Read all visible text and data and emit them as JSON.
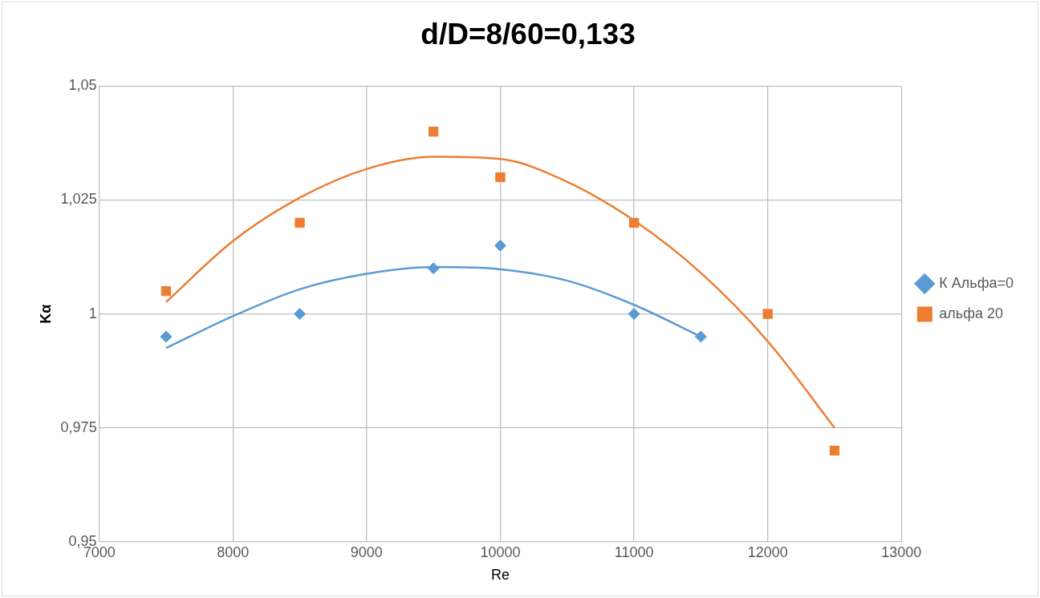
{
  "chart_data": {
    "type": "scatter",
    "title": "d/D=8/60=0,133",
    "xlabel": "Re",
    "ylabel": "Kα",
    "xlim": [
      7000,
      13000
    ],
    "xticks": [
      7000,
      8000,
      9000,
      10000,
      11000,
      12000,
      13000
    ],
    "ylim": [
      0.95,
      1.05
    ],
    "yticks": [
      {
        "value": 0.95,
        "label": "0,95"
      },
      {
        "value": 0.975,
        "label": "0,975"
      },
      {
        "value": 1,
        "label": "1"
      },
      {
        "value": 1.025,
        "label": "1,025"
      },
      {
        "value": 1.05,
        "label": "1,05"
      }
    ],
    "grid": true,
    "legend": "right",
    "series": [
      {
        "name": "К Альфа=0",
        "color": "#5b9bd5",
        "marker": "diamond",
        "x": [
          7500,
          8500,
          9500,
          10000,
          11000,
          11500
        ],
        "values": [
          0.995,
          1.0,
          1.01,
          1.015,
          1.0,
          0.995
        ]
      },
      {
        "name": "альфа 20",
        "color": "#ed7d31",
        "marker": "square",
        "x": [
          7500,
          8500,
          9500,
          10000,
          11000,
          12000,
          12500
        ],
        "values": [
          1.005,
          1.02,
          1.04,
          1.03,
          1.02,
          1.0,
          0.97
        ]
      },
      {
        "type": "line",
        "color": "#5b9bd5",
        "marker": "none",
        "x": [
          7500,
          8000,
          8500,
          9000,
          9500,
          10000,
          10500,
          11000,
          11500
        ],
        "values": [
          0.9925,
          0.9995,
          1.0054,
          1.0088,
          1.0103,
          1.0098,
          1.0073,
          1.002,
          0.995
        ]
      },
      {
        "type": "line",
        "color": "#ed7d31",
        "marker": "none",
        "x": [
          7500,
          8000,
          8500,
          9000,
          9500,
          10000,
          10500,
          11000,
          11500,
          12000,
          12500
        ],
        "values": [
          1.0026,
          1.016,
          1.0255,
          1.0318,
          1.0345,
          1.034,
          1.029,
          1.0205,
          1.009,
          0.994,
          0.975
        ]
      }
    ]
  }
}
